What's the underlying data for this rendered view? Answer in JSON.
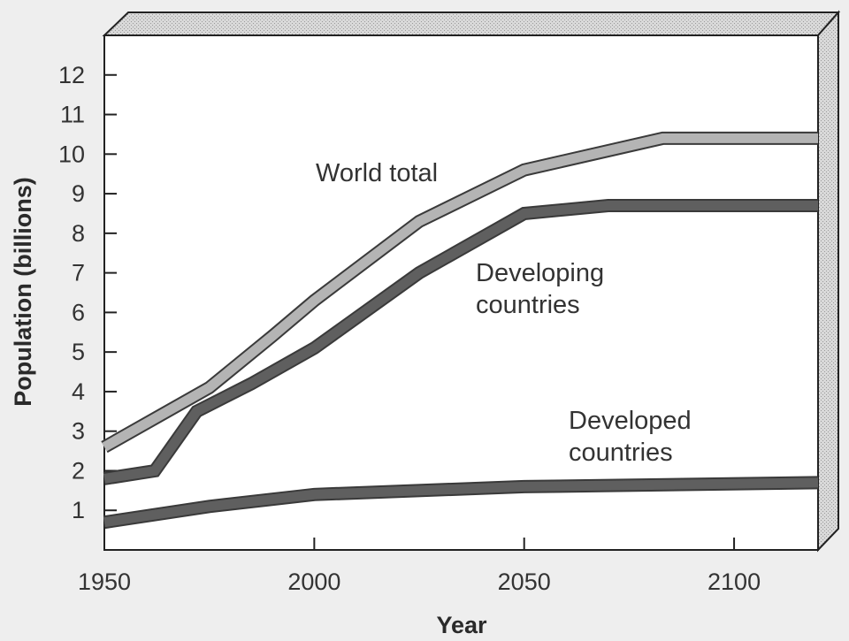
{
  "chart_data": {
    "type": "line",
    "xlabel": "Year",
    "ylabel": "Population (billions)",
    "xlim": [
      1950,
      2120
    ],
    "ylim": [
      0,
      13
    ],
    "x_ticks": [
      1950,
      2000,
      2050,
      2100
    ],
    "y_ticks": [
      1,
      2,
      3,
      4,
      5,
      6,
      7,
      8,
      9,
      10,
      11,
      12
    ],
    "grid": false,
    "colors": {
      "world_total": "#b4b4b4",
      "developing": "#5f5f5f",
      "developed": "#5f5f5f",
      "frame": "#222222",
      "plot_bg": "#ffffff",
      "top_face": "#d2d2d2",
      "side_face": "#c4c4c4"
    },
    "series": [
      {
        "name": "World total",
        "label_lines": [
          "World total"
        ],
        "x": [
          1950,
          1965,
          1975,
          1990,
          2000,
          2025,
          2050,
          2083,
          2120
        ],
        "y": [
          2.6,
          3.5,
          4.1,
          5.4,
          6.3,
          8.3,
          9.6,
          10.4,
          10.4
        ]
      },
      {
        "name": "Developing countries",
        "label_lines": [
          "Developing",
          "countries"
        ],
        "x": [
          1950,
          1962,
          1972,
          1985,
          2000,
          2025,
          2050,
          2070,
          2120
        ],
        "y": [
          1.8,
          2.0,
          3.5,
          4.2,
          5.1,
          7.0,
          8.5,
          8.7,
          8.7
        ]
      },
      {
        "name": "Developed countries",
        "label_lines": [
          "Developed",
          "countries"
        ],
        "x": [
          1950,
          1975,
          2000,
          2050,
          2120
        ],
        "y": [
          0.7,
          1.1,
          1.4,
          1.6,
          1.7
        ]
      }
    ]
  }
}
